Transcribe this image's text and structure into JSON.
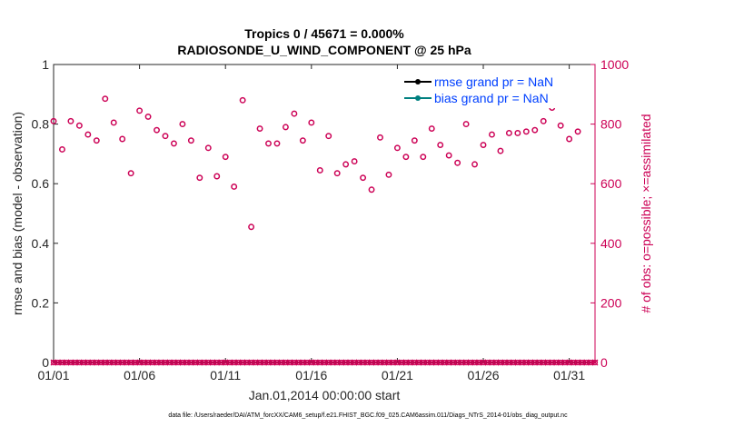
{
  "chart_data": {
    "type": "scatter",
    "title_line1": "Tropics 0 / 45671 = 0.000%",
    "title_line2": "RADIOSONDE_U_WIND_COMPONENT @ 25 hPa",
    "xlabel": "Jan.01,2014 00:00:00 start",
    "ylabel_left": "rmse and bias (model - observation)",
    "ylabel_right": "# of obs: o=possible; ×=assimilated",
    "x_ticks": [
      "01/01",
      "01/06",
      "01/11",
      "01/16",
      "01/21",
      "01/26",
      "01/31"
    ],
    "x_tick_days": [
      1,
      6,
      11,
      16,
      21,
      26,
      31
    ],
    "xlim": [
      1,
      32.5
    ],
    "left_ticks": [
      "0",
      "0.2",
      "0.4",
      "0.6",
      "0.8",
      "1"
    ],
    "left_tick_values": [
      0,
      0.2,
      0.4,
      0.6,
      0.8,
      1
    ],
    "ylim_left": [
      0,
      1
    ],
    "right_ticks": [
      "0",
      "200",
      "400",
      "600",
      "800",
      "1000"
    ],
    "right_tick_values": [
      0,
      200,
      400,
      600,
      800,
      1000
    ],
    "ylim_right": [
      0,
      1000
    ],
    "legend": [
      {
        "label": "rmse grand pr = NaN",
        "color": "#000000"
      },
      {
        "label": "bias grand pr = NaN",
        "color": "#008080"
      }
    ],
    "series": [
      {
        "name": "possible obs",
        "marker": "circle",
        "color": "#cc0055",
        "x": [
          1.0,
          1.5,
          2.0,
          2.5,
          3.0,
          3.5,
          4.0,
          4.5,
          5.0,
          5.5,
          6.0,
          6.5,
          7.0,
          7.5,
          8.0,
          8.5,
          9.0,
          9.5,
          10.0,
          10.5,
          11.0,
          11.5,
          12.0,
          12.5,
          13.0,
          13.5,
          14.0,
          14.5,
          15.0,
          15.5,
          16.0,
          16.5,
          17.0,
          17.5,
          18.0,
          18.5,
          19.0,
          19.5,
          20.0,
          20.5,
          21.0,
          21.5,
          22.0,
          22.5,
          23.0,
          23.5,
          24.0,
          24.5,
          25.0,
          25.5,
          26.0,
          26.5,
          27.0,
          27.5,
          28.0,
          28.5,
          29.0,
          29.5,
          30.0,
          30.5,
          31.0,
          31.5
        ],
        "values": [
          810,
          715,
          810,
          795,
          765,
          745,
          885,
          805,
          750,
          635,
          845,
          825,
          780,
          760,
          735,
          800,
          745,
          620,
          720,
          625,
          690,
          590,
          880,
          455,
          785,
          735,
          735,
          790,
          835,
          745,
          805,
          645,
          760,
          635,
          665,
          675,
          620,
          580,
          755,
          630,
          720,
          690,
          745,
          690,
          785,
          730,
          695,
          670,
          800,
          665,
          730,
          765,
          710,
          770,
          770,
          775,
          780,
          810,
          855,
          795,
          750,
          775
        ]
      },
      {
        "name": "assimilated obs",
        "marker": "x",
        "color": "#cc0055",
        "value": 0
      }
    ]
  },
  "footnote": "data file: /Users/raeder/DAI/ATM_forcXX/CAM6_setup/f.e21.FHIST_BGC.f09_025.CAM6assim.011/Diags_NTrS_2014-01/obs_diag_output.nc"
}
